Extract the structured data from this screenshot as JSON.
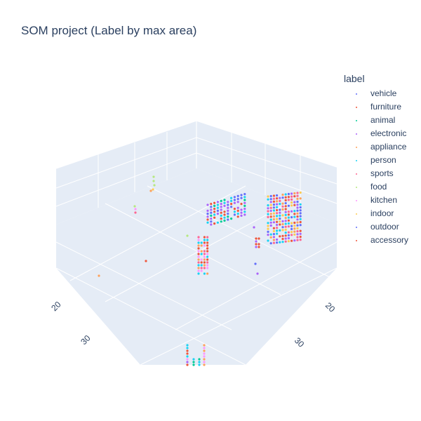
{
  "chart_data": {
    "type": "scatter3d",
    "title": "SOM project (Label by max area)",
    "legend_title": "label",
    "legend_placement": "right",
    "grid": true,
    "scene_background": "#e5ecf6",
    "x_ticks": [
      "20",
      "30"
    ],
    "y_ticks": [
      "20",
      "30"
    ],
    "series": [
      {
        "name": "vehicle",
        "color": "#636efa"
      },
      {
        "name": "furniture",
        "color": "#ef553b"
      },
      {
        "name": "animal",
        "color": "#00cc96"
      },
      {
        "name": "electronic",
        "color": "#ab63fa"
      },
      {
        "name": "appliance",
        "color": "#ffa15a"
      },
      {
        "name": "person",
        "color": "#19d3f3"
      },
      {
        "name": "sports",
        "color": "#ff6692"
      },
      {
        "name": "food",
        "color": "#b6e880"
      },
      {
        "name": "kitchen",
        "color": "#ff97ff"
      },
      {
        "name": "indoor",
        "color": "#fecb52"
      },
      {
        "name": "outdoor",
        "color": "#636efa"
      },
      {
        "name": "accessory",
        "color": "#ef553b"
      }
    ]
  }
}
